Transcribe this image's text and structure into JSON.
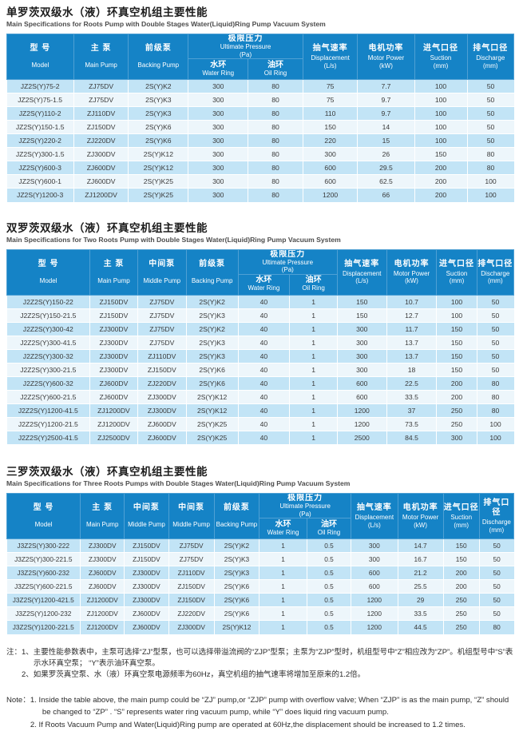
{
  "colors": {
    "header_bg": "#1583C6",
    "header_border": "#4FA0D4",
    "row_odd": "#C2E4F6",
    "row_even": "#EDF6FB",
    "header_text": "#FFFFFF",
    "body_text": "#3A3A3A"
  },
  "sections": [
    {
      "title_zh": "单罗茨双级水（液）环真空机组主要性能",
      "title_en": "Main Specifications for Roots Pump with Double Stages Water(Liquid)Ring Pump Vacuum System",
      "table": {
        "columns": [
          {
            "zh": "型 号",
            "en": "Model",
            "width": 13.2
          },
          {
            "zh": "主 泵",
            "en": "Main Pump",
            "width": 10.8
          },
          {
            "zh": "前级泵",
            "en": "Backing Pump",
            "width": 11.8
          },
          {
            "zh": "极限压力",
            "en": "Ultimate Pressure",
            "unit": "(Pa)",
            "sub": [
              {
                "zh": "水环",
                "en": "Water Ring",
                "width": 11.8
              },
              {
                "zh": "油环",
                "en": "Oil Ring",
                "width": 10.8
              }
            ]
          },
          {
            "zh": "抽气速率",
            "en": "Displacement",
            "unit": "(L/s)",
            "width": 10.8
          },
          {
            "zh": "电机功率",
            "en": "Motor Power",
            "unit": "(kW)",
            "width": 11.2
          },
          {
            "zh": "进气口径",
            "en": "Suction",
            "unit": "(mm)",
            "width": 10.4
          },
          {
            "zh": "排气口径",
            "en": "Discharge",
            "unit": "(mm)",
            "width": 9.2
          }
        ],
        "rows": [
          [
            "JZ2S(Y)75-2",
            "ZJ75DV",
            "2S(Y)K2",
            "300",
            "80",
            "75",
            "7.7",
            "100",
            "50"
          ],
          [
            "JZ2S(Y)75-1.5",
            "ZJ75DV",
            "2S(Y)K3",
            "300",
            "80",
            "75",
            "9.7",
            "100",
            "50"
          ],
          [
            "JZ2S(Y)110-2",
            "ZJ110DV",
            "2S(Y)K3",
            "300",
            "80",
            "110",
            "9.7",
            "100",
            "50"
          ],
          [
            "JZ2S(Y)150-1.5",
            "ZJ150DV",
            "2S(Y)K6",
            "300",
            "80",
            "150",
            "14",
            "100",
            "50"
          ],
          [
            "JZ2S(Y)220-2",
            "ZJ220DV",
            "2S(Y)K6",
            "300",
            "80",
            "220",
            "15",
            "100",
            "50"
          ],
          [
            "JZ2S(Y)300-1.5",
            "ZJ300DV",
            "2S(Y)K12",
            "300",
            "80",
            "300",
            "26",
            "150",
            "80"
          ],
          [
            "JZ2S(Y)600-3",
            "ZJ600DV",
            "2S(Y)K12",
            "300",
            "80",
            "600",
            "29.5",
            "200",
            "80"
          ],
          [
            "JZ2S(Y)600-1",
            "ZJ600DV",
            "2S(Y)K25",
            "300",
            "80",
            "600",
            "62.5",
            "200",
            "100"
          ],
          [
            "JZ2S(Y)1200-3",
            "ZJ1200DV",
            "2S(Y)K25",
            "300",
            "80",
            "1200",
            "66",
            "200",
            "100"
          ]
        ]
      }
    },
    {
      "title_zh": "双罗茨双级水（液）环真空机组主要性能",
      "title_en": "Main Specifications for Two Roots Pump with Double Stages Water(Liquid)Ring Pump Vacuum System",
      "table": {
        "columns": [
          {
            "zh": "型 号",
            "en": "Model",
            "width": 16.4
          },
          {
            "zh": "主 泵",
            "en": "Main Pump",
            "width": 9.4
          },
          {
            "zh": "中间泵",
            "en": "Middle Pump",
            "width": 9.6
          },
          {
            "zh": "前级泵",
            "en": "Backing Pump",
            "width": 10.2
          },
          {
            "zh": "极限压力",
            "en": "Ultimate Pressure",
            "unit": "(Pa)",
            "sub": [
              {
                "zh": "水环",
                "en": "Water Ring",
                "width": 10.2
              },
              {
                "zh": "油环",
                "en": "Oil Ring",
                "width": 9.4
              }
            ]
          },
          {
            "zh": "抽气速率",
            "en": "Displacement",
            "unit": "(L/s)",
            "width": 9.7
          },
          {
            "zh": "电机功率",
            "en": "Motor Power",
            "unit": "(kW)",
            "width": 9.9
          },
          {
            "zh": "进气口径",
            "en": "Suction",
            "unit": "(mm)",
            "width": 7.9
          },
          {
            "zh": "排气口径",
            "en": "Discharge",
            "unit": "(mm)",
            "width": 7.3
          }
        ],
        "rows": [
          [
            "J2Z2S(Y)150-22",
            "ZJ150DV",
            "ZJ75DV",
            "2S(Y)K2",
            "40",
            "1",
            "150",
            "10.7",
            "100",
            "50"
          ],
          [
            "J2Z2S(Y)150-21.5",
            "ZJ150DV",
            "ZJ75DV",
            "2S(Y)K3",
            "40",
            "1",
            "150",
            "12.7",
            "100",
            "50"
          ],
          [
            "J2Z2S(Y)300-42",
            "ZJ300DV",
            "ZJ75DV",
            "2S(Y)K2",
            "40",
            "1",
            "300",
            "11.7",
            "150",
            "50"
          ],
          [
            "J2Z2S(Y)300-41.5",
            "ZJ300DV",
            "ZJ75DV",
            "2S(Y)K3",
            "40",
            "1",
            "300",
            "13.7",
            "150",
            "50"
          ],
          [
            "J2Z2S(Y)300-32",
            "ZJ300DV",
            "ZJ110DV",
            "2S(Y)K3",
            "40",
            "1",
            "300",
            "13.7",
            "150",
            "50"
          ],
          [
            "J2Z2S(Y)300-21.5",
            "ZJ300DV",
            "ZJ150DV",
            "2S(Y)K6",
            "40",
            "1",
            "300",
            "18",
            "150",
            "50"
          ],
          [
            "J2Z2S(Y)600-32",
            "ZJ600DV",
            "ZJ220DV",
            "2S(Y)K6",
            "40",
            "1",
            "600",
            "22.5",
            "200",
            "80"
          ],
          [
            "J2Z2S(Y)600-21.5",
            "ZJ600DV",
            "ZJ300DV",
            "2S(Y)K12",
            "40",
            "1",
            "600",
            "33.5",
            "200",
            "80"
          ],
          [
            "J2Z2S(Y)1200-41.5",
            "ZJ1200DV",
            "ZJ300DV",
            "2S(Y)K12",
            "40",
            "1",
            "1200",
            "37",
            "250",
            "80"
          ],
          [
            "J2Z2S(Y)1200-21.5",
            "ZJ1200DV",
            "ZJ600DV",
            "2S(Y)K25",
            "40",
            "1",
            "1200",
            "73.5",
            "250",
            "100"
          ],
          [
            "J2Z2S(Y)2500-41.5",
            "ZJ2500DV",
            "ZJ600DV",
            "2S(Y)K25",
            "40",
            "1",
            "2500",
            "84.5",
            "300",
            "100"
          ]
        ]
      }
    },
    {
      "title_zh": "三罗茨双级水（液）环真空机组主要性能",
      "title_en": "Main Specifications for Three Roots Pumps with Double Stages Water(Liquid)Ring Pump Vacuum System",
      "table": {
        "columns": [
          {
            "zh": "型 号",
            "en": "Model",
            "width": 14.5
          },
          {
            "zh": "主 泵",
            "en": "Main Pump",
            "width": 8.7
          },
          {
            "zh": "中间泵",
            "en": "Middle Pump",
            "width": 8.7
          },
          {
            "zh": "中间泵",
            "en": "Middle Pump",
            "width": 9.0
          },
          {
            "zh": "前级泵",
            "en": "Backing Pump",
            "width": 8.9
          },
          {
            "zh": "极限压力",
            "en": "Ultimate Pressure",
            "unit": "(Pa)",
            "sub": [
              {
                "zh": "水环",
                "en": "Water Ring",
                "width": 9.4
              },
              {
                "zh": "油环",
                "en": "Oil Ring",
                "width": 8.7
              }
            ]
          },
          {
            "zh": "抽气速率",
            "en": "Displacement",
            "unit": "(L/s)",
            "width": 9.2
          },
          {
            "zh": "电机功率",
            "en": "Motor Power",
            "unit": "(kW)",
            "width": 9.0
          },
          {
            "zh": "进气口径",
            "en": "Suction",
            "unit": "(mm)",
            "width": 7.1
          },
          {
            "zh": "排气口径",
            "en": "Discharge",
            "unit": "(mm)",
            "width": 6.8
          }
        ],
        "rows": [
          [
            "J3Z2S(Y)300-222",
            "ZJ300DV",
            "ZJ150DV",
            "ZJ75DV",
            "2S(Y)K2",
            "1",
            "0.5",
            "300",
            "14.7",
            "150",
            "50"
          ],
          [
            "J3Z2S(Y)300-221.5",
            "ZJ300DV",
            "ZJ150DV",
            "ZJ75DV",
            "2S(Y)K3",
            "1",
            "0.5",
            "300",
            "16.7",
            "150",
            "50"
          ],
          [
            "J3Z2S(Y)600-232",
            "ZJ600DV",
            "ZJ300DV",
            "ZJ110DV",
            "2S(Y)K3",
            "1",
            "0.5",
            "600",
            "21.2",
            "200",
            "50"
          ],
          [
            "J3Z2S(Y)600-221.5",
            "ZJ600DV",
            "ZJ300DV",
            "ZJ150DV",
            "2S(Y)K6",
            "1",
            "0.5",
            "600",
            "25.5",
            "200",
            "50"
          ],
          [
            "J3Z2S(Y)1200-421.5",
            "ZJ1200DV",
            "ZJ300DV",
            "ZJ150DV",
            "2S(Y)K6",
            "1",
            "0.5",
            "1200",
            "29",
            "250",
            "50"
          ],
          [
            "J3Z2S(Y)1200-232",
            "ZJ1200DV",
            "ZJ600DV",
            "ZJ220DV",
            "2S(Y)K6",
            "1",
            "0.5",
            "1200",
            "33.5",
            "250",
            "50"
          ],
          [
            "J3Z2S(Y)1200-221.5",
            "ZJ1200DV",
            "ZJ600DV",
            "ZJ300DV",
            "2S(Y)K12",
            "1",
            "0.5",
            "1200",
            "44.5",
            "250",
            "80"
          ]
        ]
      }
    }
  ],
  "notes_zh": {
    "label": "注：",
    "lines": [
      "1、主要性能参数表中，主泵可选择“ZJ”型泵，也可以选择带溢流阀的“ZJP”型泵；主泵为“ZJP”型时，机组型号中“Z”相应改为“ZP”。机组型号中“S”表示水环真空泵； “Y”表示油环真空泵。",
      "2、如果罗茨真空泵、水（液）环真空泵电源频率为60Hz，真空机组的抽气速率将增加至原来的1.2倍。"
    ]
  },
  "notes_en": {
    "label": "Note：",
    "lines": [
      "1. Inside the table above, the main pump could be “ZJ” pump,or “ZJP” pump with overflow valve; When “ZJP” is as the main pump, “Z” should be changed to “ZP” . “S” represents water ring vacuum pump, while “Y” does liquid ring vacuum pump.",
      "2. If Roots Vacuum Pump and Water(Liquid)Ring pump are operated at 60Hz,the displacement should be increased to 1.2 times."
    ]
  }
}
